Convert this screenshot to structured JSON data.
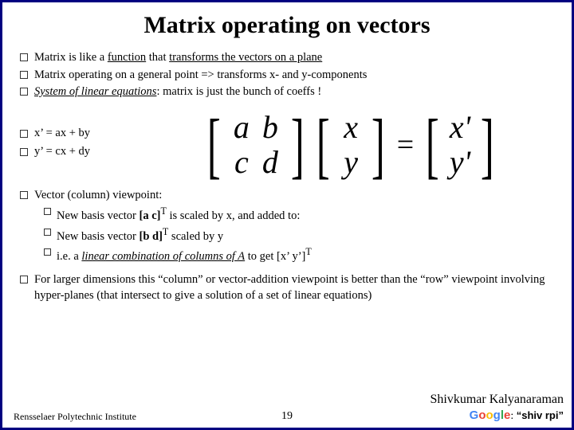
{
  "title": "Matrix operating on vectors",
  "bullets_top": [
    {
      "pre": "Matrix is like a ",
      "u": "function",
      "post": " that ",
      "u2": "transforms the vectors on a plane"
    },
    {
      "text": "Matrix operating on a general point => transforms x- and y-components"
    },
    {
      "it_pre": "System of linear equations",
      "post": ": matrix is just the bunch of coeffs !"
    }
  ],
  "mid_eqs": [
    "x’ = ax + by",
    "y’ = cx + dy"
  ],
  "matrix": {
    "a": "a",
    "b": "b",
    "c": "c",
    "d": "d",
    "x": "x",
    "y": "y",
    "xp": "x'",
    "yp": "y'",
    "eq": "="
  },
  "bullet_vec": {
    "head": "Vector (column) viewpoint:",
    "s1_pre": "New basis vector ",
    "s1_b": "[a c]",
    "s1_sup": "T",
    "s1_post": " is scaled by x, and added to:",
    "s2_pre": "New basis vector ",
    "s2_b": "[b d]",
    "s2_sup": "T",
    "s2_post": " scaled by y",
    "s3_pre": "i.e. a ",
    "s3_u": "linear combination of columns of A",
    "s3_post": " to get [x’ y’]",
    "s3_sup": "T"
  },
  "bullet_last": "For larger dimensions this “column” or vector-addition viewpoint is better than the “row” viewpoint involving hyper-planes (that intersect to give a solution of a set of linear equations)",
  "footer": {
    "inst": "Rensselaer Polytechnic Institute",
    "author": "Shivkumar Kalyanaraman",
    "search_prefix": ": ",
    "search": "“shiv rpi”",
    "page": "19"
  },
  "colors": {
    "border": "#000080"
  }
}
